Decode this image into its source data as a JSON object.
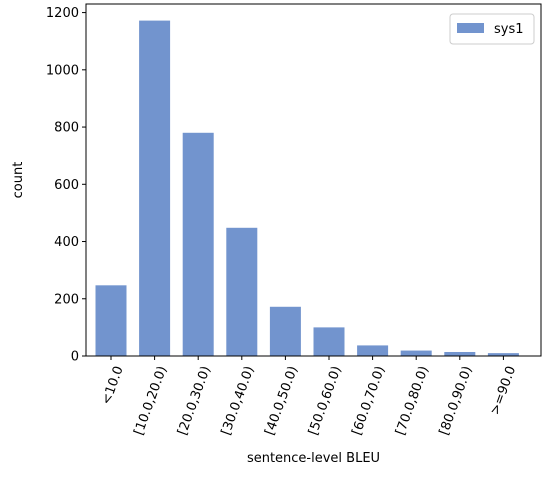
{
  "chart_data": {
    "type": "bar",
    "categories": [
      "<10.0",
      "[10.0,20.0)",
      "[20.0,30.0)",
      "[30.0,40.0)",
      "[40.0,50.0)",
      "[50.0,60.0)",
      "[60.0,70.0)",
      "[70.0,80.0)",
      "[80.0,90.0)",
      ">=90.0"
    ],
    "series": [
      {
        "name": "sys1",
        "color": "#7294ce",
        "values": [
          247,
          1172,
          780,
          448,
          172,
          100,
          37,
          19,
          14,
          10
        ]
      }
    ],
    "xlabel": "sentence-level BLEU",
    "ylabel": "count",
    "ylim": [
      0,
      1230
    ],
    "yticks": [
      0,
      200,
      400,
      600,
      800,
      1000,
      1200
    ],
    "grid": false,
    "legend_position": "top-right"
  }
}
